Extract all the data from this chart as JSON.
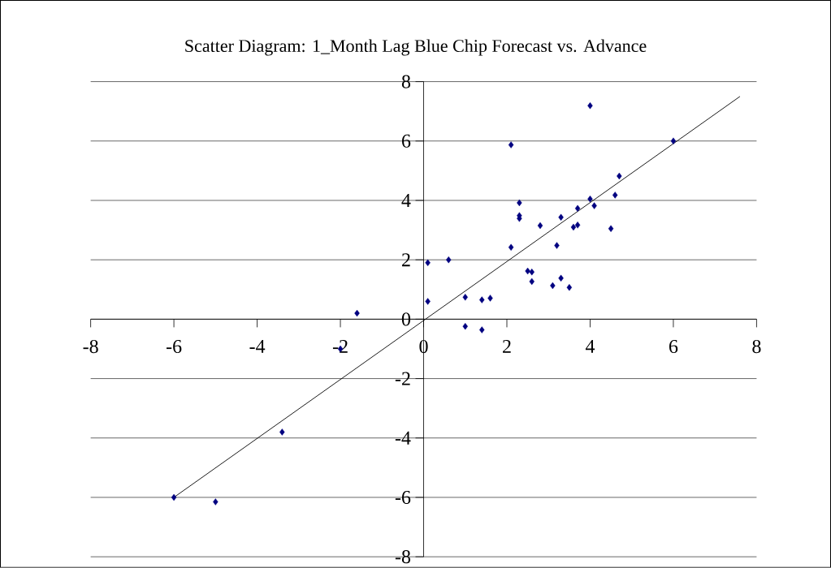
{
  "chart_data": {
    "type": "scatter",
    "title": "Scatter Diagram: 1_Month Lag Blue Chip Forecast vs. Advance",
    "xlim": [
      -8,
      8
    ],
    "ylim": [
      -8,
      8
    ],
    "xticks": [
      -8,
      -6,
      -4,
      -2,
      0,
      2,
      4,
      6,
      8
    ],
    "yticks": [
      -8,
      -6,
      -4,
      -2,
      0,
      2,
      4,
      6,
      8
    ],
    "grid": "y",
    "marker": "diamond",
    "series": [
      {
        "type": "scatter",
        "color": "#000080",
        "x": [
          -6,
          -5,
          -3.4,
          -2.0,
          -1.6,
          0.1,
          0.1,
          0.6,
          1.0,
          1.0,
          1.4,
          1.4,
          1.6,
          2.1,
          2.1,
          2.3,
          2.3,
          2.3,
          2.5,
          2.6,
          2.6,
          2.8,
          3.1,
          3.2,
          3.3,
          3.3,
          3.5,
          3.6,
          3.7,
          3.7,
          4.0,
          4.0,
          4.1,
          4.5,
          4.6,
          4.7,
          6.0
        ],
        "values": [
          -6,
          -6.15,
          -3.8,
          -1.0,
          0.2,
          1.9,
          0.6,
          2.0,
          0.74,
          -0.24,
          0.65,
          -0.36,
          0.71,
          5.87,
          2.42,
          3.92,
          3.49,
          3.39,
          1.62,
          1.59,
          1.27,
          3.15,
          1.13,
          2.48,
          3.43,
          1.38,
          1.07,
          3.1,
          3.17,
          3.73,
          7.19,
          4.05,
          3.82,
          3.05,
          4.18,
          4.82,
          6.0
        ]
      },
      {
        "type": "line",
        "color": "#000000",
        "marker": "none",
        "x": [
          -6,
          7.6
        ],
        "values": [
          -6,
          7.5
        ]
      }
    ]
  }
}
